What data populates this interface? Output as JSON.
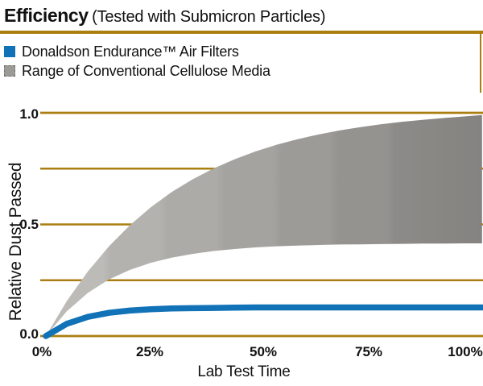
{
  "title": {
    "main": "Efficiency",
    "subtitle": "(Tested with Submicron Particles)"
  },
  "colors": {
    "rule": "#aa7e10",
    "grid": "#aa7e10",
    "background": "#ffffff",
    "text": "#111111"
  },
  "legend": {
    "items": [
      {
        "label": "Donaldson Endurance™ Air Filters",
        "color": "#1172b8"
      },
      {
        "label": "Range of Conventional Cellulose Media",
        "color": "#9b9a97"
      }
    ]
  },
  "chart_data": {
    "type": "area",
    "title": "Efficiency (Tested with Submicron Particles)",
    "xlabel": "Lab Test Time",
    "ylabel": "Relative Dust Passed",
    "x_ticks": [
      "0%",
      "25%",
      "50%",
      "75%",
      "100%"
    ],
    "y_ticks": [
      "1.0",
      "0.5",
      "0.0"
    ],
    "xlim": [
      0,
      1.04
    ],
    "ylim": [
      0,
      1
    ],
    "grid_values": [
      0,
      0.25,
      0.5,
      0.75,
      1.0
    ],
    "grid_color": "#aa7e10",
    "legend_position": "top-left",
    "series": [
      {
        "name": "Range of Conventional Cellulose Media",
        "type": "band",
        "upper": [
          [
            0,
            0
          ],
          [
            0.05,
            0.157
          ],
          [
            0.1,
            0.289
          ],
          [
            0.15,
            0.401
          ],
          [
            0.2,
            0.496
          ],
          [
            0.25,
            0.577
          ],
          [
            0.3,
            0.645
          ],
          [
            0.35,
            0.702
          ],
          [
            0.4,
            0.751
          ],
          [
            0.45,
            0.792
          ],
          [
            0.5,
            0.827
          ],
          [
            0.55,
            0.857
          ],
          [
            0.6,
            0.882
          ],
          [
            0.65,
            0.903
          ],
          [
            0.7,
            0.921
          ],
          [
            0.75,
            0.936
          ],
          [
            0.8,
            0.949
          ],
          [
            0.85,
            0.96
          ],
          [
            0.9,
            0.969
          ],
          [
            0.95,
            0.977
          ],
          [
            1.0,
            0.984
          ],
          [
            1.04,
            0.99
          ]
        ],
        "lower": [
          [
            0,
            0
          ],
          [
            0.05,
            0.111
          ],
          [
            0.1,
            0.193
          ],
          [
            0.15,
            0.253
          ],
          [
            0.2,
            0.296
          ],
          [
            0.25,
            0.328
          ],
          [
            0.3,
            0.351
          ],
          [
            0.35,
            0.368
          ],
          [
            0.4,
            0.381
          ],
          [
            0.45,
            0.39
          ],
          [
            0.5,
            0.397
          ],
          [
            0.55,
            0.402
          ],
          [
            0.6,
            0.405
          ],
          [
            0.65,
            0.408
          ],
          [
            0.7,
            0.41
          ],
          [
            0.75,
            0.411
          ],
          [
            0.8,
            0.412
          ],
          [
            0.85,
            0.413
          ],
          [
            0.9,
            0.414
          ],
          [
            0.95,
            0.414
          ],
          [
            1.0,
            0.415
          ],
          [
            1.04,
            0.415
          ]
        ],
        "gradient_stops": [
          [
            0,
            "#bdbbb7"
          ],
          [
            0.13,
            "#bdbbb7"
          ],
          [
            0.15,
            "#b4b2ae"
          ],
          [
            0.26,
            "#b4b2ae"
          ],
          [
            0.28,
            "#adaba7"
          ],
          [
            0.39,
            "#adaba7"
          ],
          [
            0.41,
            "#a5a3a0"
          ],
          [
            0.52,
            "#a5a3a0"
          ],
          [
            0.54,
            "#9d9b98"
          ],
          [
            0.65,
            "#9d9b98"
          ],
          [
            0.67,
            "#959390"
          ],
          [
            0.78,
            "#959390"
          ],
          [
            0.8,
            "#8d8b88"
          ],
          [
            1,
            "#858380"
          ]
        ]
      },
      {
        "name": "Donaldson Endurance™ Air Filters",
        "type": "line",
        "color": "#1172b8",
        "width": 7.5,
        "points": [
          [
            0,
            0
          ],
          [
            0.05,
            0.055
          ],
          [
            0.1,
            0.086
          ],
          [
            0.15,
            0.104
          ],
          [
            0.2,
            0.114
          ],
          [
            0.25,
            0.12
          ],
          [
            0.3,
            0.124
          ],
          [
            0.35,
            0.125
          ],
          [
            0.4,
            0.126
          ],
          [
            0.45,
            0.127
          ],
          [
            0.5,
            0.128
          ],
          [
            0.6,
            0.128
          ],
          [
            0.7,
            0.128
          ],
          [
            0.8,
            0.128
          ],
          [
            0.9,
            0.128
          ],
          [
            1.0,
            0.128
          ],
          [
            1.04,
            0.128
          ]
        ]
      }
    ]
  }
}
